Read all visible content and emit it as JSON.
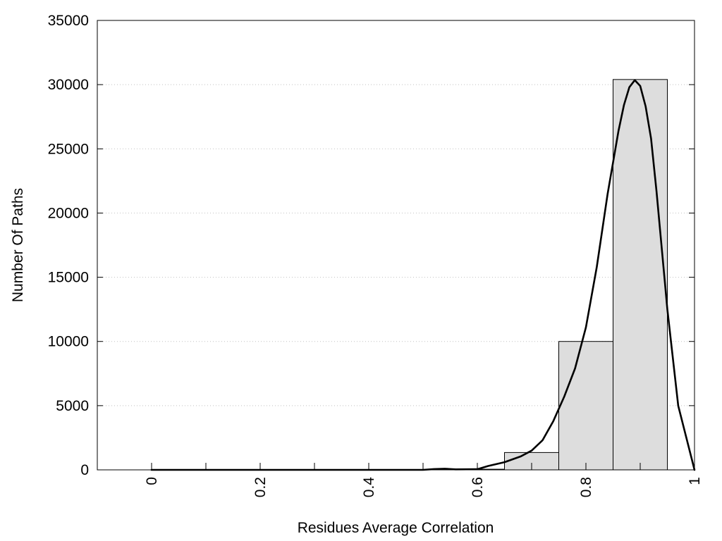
{
  "chart_data": {
    "type": "bar",
    "subtype": "histogram-with-density-curve",
    "title": "",
    "xlabel": "Residues Average Correlation",
    "ylabel": "Number Of Paths",
    "xlim": [
      -0.1,
      1.0
    ],
    "ylim": [
      0,
      35000
    ],
    "x_ticks": [
      0,
      0.2,
      0.4,
      0.6,
      0.8,
      1
    ],
    "x_tick_labels": [
      "0",
      "0.2",
      "0.4",
      "0.6",
      "0.8",
      "1"
    ],
    "x_minor_ticks": [
      0.1,
      0.3,
      0.5,
      0.7,
      0.9
    ],
    "y_ticks": [
      0,
      5000,
      10000,
      15000,
      20000,
      25000,
      30000,
      35000
    ],
    "y_tick_labels": [
      "0",
      "5000",
      "10000",
      "15000",
      "20000",
      "25000",
      "30000",
      "35000"
    ],
    "x_tick_label_rotation": "vertical",
    "grid": "horizontal dotted",
    "legend": "none",
    "bars": [
      {
        "x0": 0.0,
        "x1": 0.05,
        "value": 0
      },
      {
        "x0": 0.05,
        "x1": 0.15,
        "value": 0
      },
      {
        "x0": 0.15,
        "x1": 0.25,
        "value": 0
      },
      {
        "x0": 0.25,
        "x1": 0.35,
        "value": 0
      },
      {
        "x0": 0.35,
        "x1": 0.45,
        "value": 0
      },
      {
        "x0": 0.45,
        "x1": 0.55,
        "value": 0
      },
      {
        "x0": 0.55,
        "x1": 0.65,
        "value": 50
      },
      {
        "x0": 0.65,
        "x1": 0.75,
        "value": 1350
      },
      {
        "x0": 0.75,
        "x1": 0.85,
        "value": 10000
      },
      {
        "x0": 0.85,
        "x1": 0.95,
        "value": 30400
      }
    ],
    "curve": {
      "x": [
        0.0,
        0.1,
        0.2,
        0.3,
        0.4,
        0.5,
        0.52,
        0.54,
        0.56,
        0.6,
        0.62,
        0.65,
        0.68,
        0.7,
        0.72,
        0.74,
        0.76,
        0.78,
        0.8,
        0.82,
        0.84,
        0.86,
        0.87,
        0.88,
        0.89,
        0.9,
        0.91,
        0.92,
        0.93,
        0.95,
        0.97,
        1.0
      ],
      "y": [
        0,
        0,
        0,
        0,
        0,
        0,
        60,
        90,
        40,
        50,
        300,
        600,
        1050,
        1500,
        2300,
        3800,
        5700,
        7900,
        11100,
        15800,
        21500,
        26400,
        28400,
        29800,
        30350,
        29900,
        28300,
        25800,
        21700,
        12500,
        5000,
        0
      ]
    },
    "colors": {
      "bar_fill": "#dddddd",
      "bar_stroke": "#000000",
      "curve": "#000000",
      "grid": "#c0c0c0",
      "frame": "#000000"
    }
  }
}
